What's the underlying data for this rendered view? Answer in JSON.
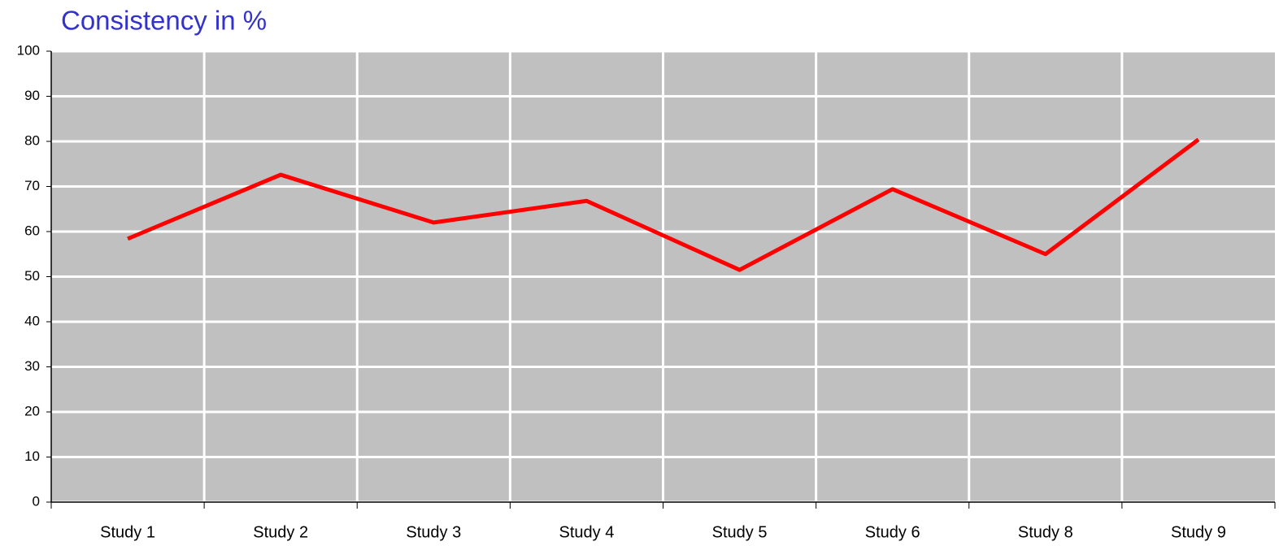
{
  "chart_data": {
    "type": "line",
    "title": "Consistency in %",
    "categories": [
      "Study 1",
      "Study 2",
      "Study 3",
      "Study 4",
      "Study 5",
      "Study 6",
      "Study 8",
      "Study 9"
    ],
    "values": [
      58.4,
      72.6,
      62,
      66.8,
      51.5,
      69.4,
      55,
      80.4
    ],
    "color": "#ff0000",
    "ylim": [
      0,
      100
    ],
    "yticks": [
      0,
      10,
      20,
      30,
      40,
      50,
      60,
      70,
      80,
      90,
      100
    ],
    "grid": true
  }
}
